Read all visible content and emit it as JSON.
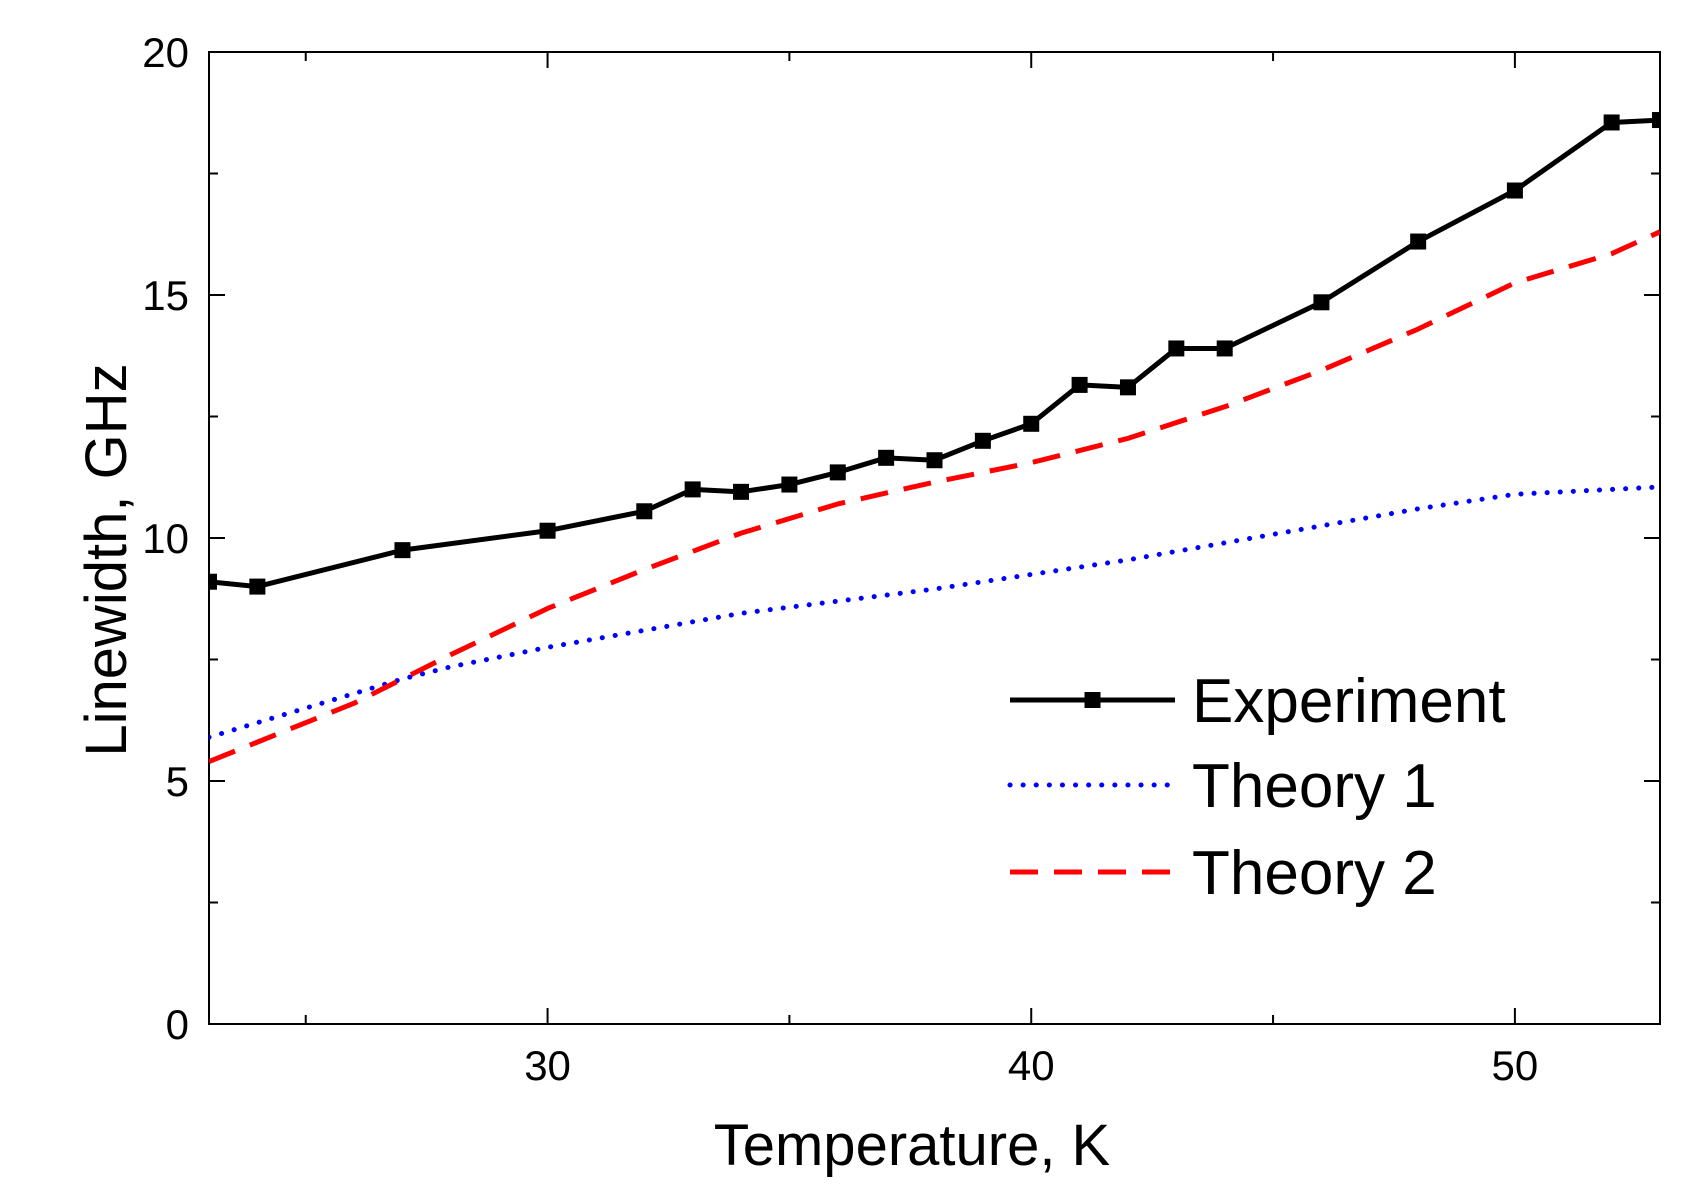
{
  "chart_data": {
    "type": "line",
    "title": "",
    "xlabel": "Temperature, K",
    "ylabel": "Linewidth, GHz",
    "xlim": [
      23,
      53
    ],
    "ylim": [
      0,
      20
    ],
    "x_major_ticks": [
      30,
      40,
      50
    ],
    "x_minor_ticks": [
      25,
      35,
      45
    ],
    "y_major_ticks": [
      0,
      5,
      10,
      15,
      20
    ],
    "y_minor_ticks": [
      2.5,
      7.5,
      12.5,
      17.5
    ],
    "x_tick_labels": [
      "30",
      "40",
      "50"
    ],
    "y_tick_labels": [
      "0",
      "5",
      "10",
      "15",
      "20"
    ],
    "grid": false,
    "legend_position": "lower-right",
    "series": [
      {
        "name": "Experiment",
        "style": "solid-with-square-markers",
        "color": "#000000",
        "x": [
          23,
          24,
          27,
          30,
          32,
          33,
          34,
          35,
          36,
          37,
          38,
          39,
          40,
          41,
          42,
          43,
          44,
          46,
          48,
          50,
          52,
          53
        ],
        "y": [
          9.1,
          9.0,
          9.75,
          10.15,
          10.55,
          11.0,
          10.95,
          11.1,
          11.35,
          11.65,
          11.6,
          12.0,
          12.35,
          13.15,
          13.1,
          13.9,
          13.9,
          14.85,
          16.1,
          17.15,
          18.55,
          18.6
        ]
      },
      {
        "name": "Theory 1",
        "style": "dotted",
        "color": "#0000ff",
        "x": [
          23,
          24,
          25,
          26,
          27,
          28,
          30,
          32,
          34,
          36,
          38,
          40,
          42,
          44,
          46,
          48,
          50,
          52,
          53
        ],
        "y": [
          5.9,
          6.2,
          6.5,
          6.8,
          7.1,
          7.35,
          7.75,
          8.1,
          8.45,
          8.7,
          8.95,
          9.25,
          9.55,
          9.9,
          10.25,
          10.6,
          10.9,
          11.0,
          11.05
        ]
      },
      {
        "name": "Theory 2",
        "style": "dashed",
        "color": "#ff0000",
        "x": [
          23,
          24,
          25,
          26,
          27,
          28,
          30,
          32,
          34,
          36,
          38,
          40,
          42,
          44,
          46,
          48,
          50,
          52,
          53
        ],
        "y": [
          5.4,
          5.8,
          6.2,
          6.6,
          7.1,
          7.6,
          8.55,
          9.35,
          10.1,
          10.7,
          11.15,
          11.55,
          12.05,
          12.7,
          13.45,
          14.3,
          15.25,
          15.85,
          16.3
        ]
      }
    ]
  }
}
